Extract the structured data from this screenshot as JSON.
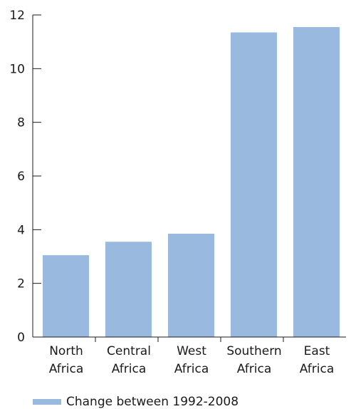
{
  "chart_data": {
    "type": "bar",
    "categories": [
      [
        "North",
        "Africa"
      ],
      [
        "Central",
        "Africa"
      ],
      [
        "West",
        "Africa"
      ],
      [
        "Southern",
        "Africa"
      ],
      [
        "East",
        "Africa"
      ]
    ],
    "series": [
      {
        "name": "Change between 1992-2008",
        "color": "#99b9de",
        "values": [
          3.05,
          3.55,
          3.85,
          11.35,
          11.55
        ]
      }
    ],
    "y_ticks": [
      "0",
      "2",
      "4",
      "6",
      "8",
      "10",
      "12"
    ],
    "ylim": [
      0,
      12
    ],
    "grid": false,
    "legend_position": "bottom-left"
  }
}
